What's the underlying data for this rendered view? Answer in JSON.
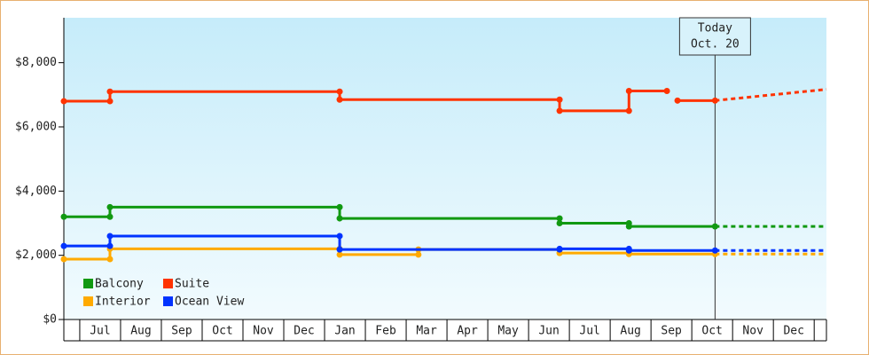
{
  "chart_data": {
    "type": "line",
    "ylim": [
      0,
      9400
    ],
    "yticks": [
      {
        "value": 0,
        "label": "$0"
      },
      {
        "value": 2000,
        "label": "$2,000"
      },
      {
        "value": 4000,
        "label": "$4,000"
      },
      {
        "value": 6000,
        "label": "$6,000"
      },
      {
        "value": 8000,
        "label": "$8,000"
      }
    ],
    "xlim": [
      -0.39,
      18.3
    ],
    "xticks": [
      {
        "value": 0.5,
        "label": "Jul"
      },
      {
        "value": 1.5,
        "label": "Aug"
      },
      {
        "value": 2.5,
        "label": "Sep"
      },
      {
        "value": 3.5,
        "label": "Oct"
      },
      {
        "value": 4.5,
        "label": "Nov"
      },
      {
        "value": 5.5,
        "label": "Dec"
      },
      {
        "value": 6.5,
        "label": "Jan"
      },
      {
        "value": 7.5,
        "label": "Feb"
      },
      {
        "value": 8.5,
        "label": "Mar"
      },
      {
        "value": 9.5,
        "label": "Apr"
      },
      {
        "value": 10.5,
        "label": "May"
      },
      {
        "value": 11.5,
        "label": "Jun"
      },
      {
        "value": 12.5,
        "label": "Jul"
      },
      {
        "value": 13.5,
        "label": "Aug"
      },
      {
        "value": 14.5,
        "label": "Sep"
      },
      {
        "value": 15.5,
        "label": "Oct"
      },
      {
        "value": 16.5,
        "label": "Nov"
      },
      {
        "value": 17.5,
        "label": "Dec"
      }
    ],
    "annotation": {
      "x": 15.57,
      "lines": [
        "Today",
        "Oct. 20"
      ]
    },
    "legend": "bottom-left",
    "series": [
      {
        "name": "Balcony",
        "color": "#119911",
        "x": [
          -0.39,
          0.74,
          0.74,
          6.37,
          6.37,
          11.76,
          11.76,
          13.46,
          13.46,
          15.57
        ],
        "values": [
          3200,
          3200,
          3500,
          3500,
          3150,
          3150,
          3000,
          3000,
          2900,
          2900
        ],
        "forecast": {
          "x": [
            15.57,
            18.3
          ],
          "values": [
            2900,
            2900
          ]
        }
      },
      {
        "name": "Suite",
        "color": "#ff3300",
        "x": [
          -0.39,
          0.74,
          0.74,
          6.37,
          6.37,
          11.76,
          11.76,
          13.46,
          13.46,
          14.39,
          null,
          14.65,
          15.57
        ],
        "values": [
          6800,
          6800,
          7100,
          7100,
          6850,
          6850,
          6500,
          6500,
          7120,
          7120,
          null,
          6820,
          6820
        ],
        "forecast": {
          "x": [
            15.57,
            18.3
          ],
          "values": [
            6820,
            7170
          ]
        }
      },
      {
        "name": "Interior",
        "color": "#ffaa00",
        "x": [
          -0.39,
          0.74,
          0.74,
          6.37,
          6.37,
          8.3,
          8.3,
          11.76,
          11.76,
          13.46,
          13.46,
          15.57
        ],
        "values": [
          1880,
          1880,
          2200,
          2200,
          2020,
          2020,
          2180,
          2180,
          2070,
          2070,
          2040,
          2040
        ],
        "forecast": {
          "x": [
            15.57,
            18.3
          ],
          "values": [
            2040,
            2040
          ]
        }
      },
      {
        "name": "Ocean View",
        "color": "#0033ff",
        "x": [
          -0.39,
          0.74,
          0.74,
          6.37,
          6.37,
          11.76,
          11.76,
          13.46,
          13.46,
          15.57
        ],
        "values": [
          2290,
          2290,
          2600,
          2600,
          2180,
          2180,
          2200,
          2200,
          2150,
          2150
        ],
        "forecast": {
          "x": [
            15.57,
            18.3
          ],
          "values": [
            2150,
            2150
          ]
        }
      }
    ]
  }
}
